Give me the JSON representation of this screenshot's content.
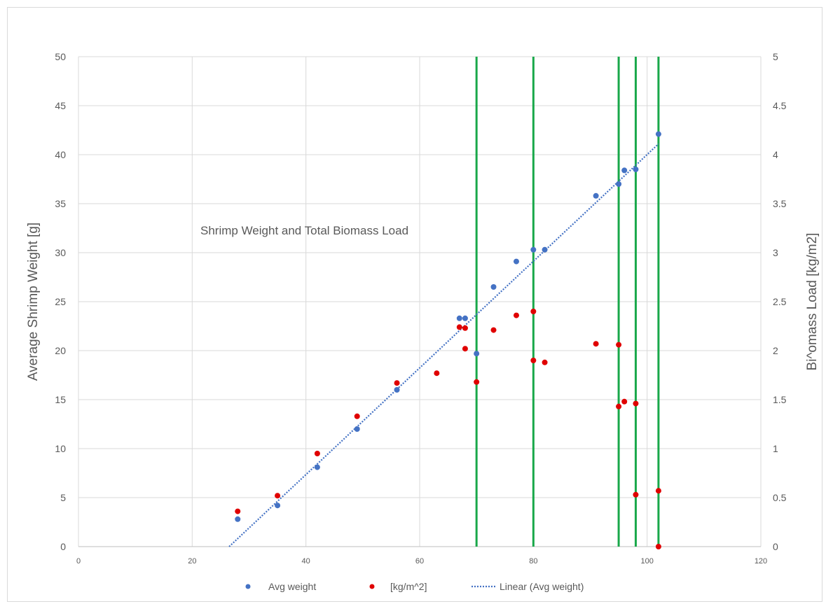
{
  "chart_data": {
    "type": "scatter",
    "title": "",
    "annotation": "Shrimp Weight and Total Biomass Load",
    "xlabel": "",
    "ylabel": "Average Shrimp Weight [g]",
    "y2label": "Bi^omass Load [kg/m2]",
    "xlim": [
      0,
      120
    ],
    "ylim": [
      0,
      50
    ],
    "y2lim": [
      0,
      5
    ],
    "x_ticks": [
      "0",
      "20",
      "40",
      "60",
      "80",
      "100",
      "120"
    ],
    "y_ticks": [
      "0",
      "5",
      "10",
      "15",
      "20",
      "25",
      "30",
      "35",
      "40",
      "45",
      "50"
    ],
    "y2_ticks": [
      "0",
      "0.5",
      "1",
      "1.5",
      "2",
      "2.5",
      "3",
      "3.5",
      "4",
      "4.5",
      "5"
    ],
    "grid": true,
    "legend_position": "bottom",
    "series": [
      {
        "name": "Avg weight",
        "axis": "left",
        "color": "#4472c4",
        "points": [
          [
            28,
            2.8
          ],
          [
            35,
            4.2
          ],
          [
            42,
            8.1
          ],
          [
            49,
            12.0
          ],
          [
            56,
            16.0
          ],
          [
            67,
            23.3
          ],
          [
            68,
            23.3
          ],
          [
            70,
            19.7
          ],
          [
            73,
            26.5
          ],
          [
            77,
            29.1
          ],
          [
            80,
            30.3
          ],
          [
            82,
            30.3
          ],
          [
            91,
            35.8
          ],
          [
            95,
            37.0
          ],
          [
            96,
            38.4
          ],
          [
            98,
            38.5
          ],
          [
            102,
            42.1
          ]
        ]
      },
      {
        "name": "[kg/m^2]",
        "axis": "right",
        "color": "#e00000",
        "points": [
          [
            28,
            0.36
          ],
          [
            35,
            0.52
          ],
          [
            42,
            0.95
          ],
          [
            49,
            1.33
          ],
          [
            56,
            1.67
          ],
          [
            63,
            1.77
          ],
          [
            67,
            2.24
          ],
          [
            68,
            2.23
          ],
          [
            68,
            2.02
          ],
          [
            70,
            1.68
          ],
          [
            73,
            2.21
          ],
          [
            77,
            2.36
          ],
          [
            80,
            2.4
          ],
          [
            80,
            1.9
          ],
          [
            82,
            1.88
          ],
          [
            91,
            2.07
          ],
          [
            95,
            2.06
          ],
          [
            95,
            1.43
          ],
          [
            96,
            1.48
          ],
          [
            98,
            1.46
          ],
          [
            98,
            0.53
          ],
          [
            102,
            0.57
          ],
          [
            102,
            0.0
          ]
        ]
      },
      {
        "name": "Linear (Avg weight)",
        "type": "trendline",
        "axis": "left",
        "color": "#4472c4",
        "x_range": [
          26.5,
          102
        ],
        "y_range": [
          0,
          41.1
        ]
      }
    ],
    "vertical_lines": {
      "color": "#19a84a",
      "x": [
        70,
        80,
        95,
        98,
        102
      ]
    }
  }
}
